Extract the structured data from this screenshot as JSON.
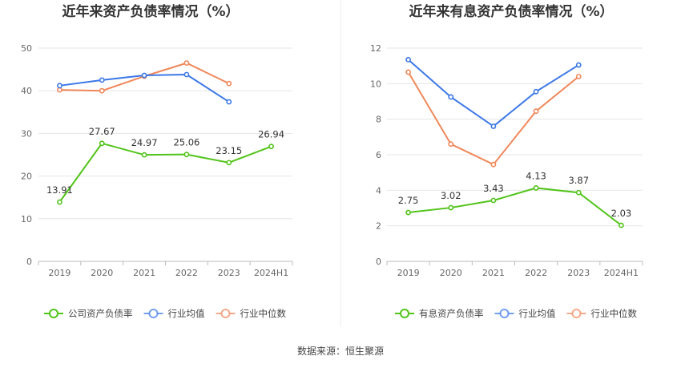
{
  "chart_data": [
    {
      "type": "line",
      "title": "近年来资产负债率情况（%）",
      "categories": [
        "2019",
        "2020",
        "2021",
        "2022",
        "2023",
        "2024H1"
      ],
      "ylim": [
        0,
        50
      ],
      "yticks": [
        0,
        10,
        20,
        30,
        40,
        50
      ],
      "grid": true,
      "legend_position": "bottom",
      "series": [
        {
          "name": "公司资产负债率",
          "color": "#52c41a",
          "values": [
            13.91,
            27.67,
            24.97,
            25.06,
            23.15,
            26.94
          ],
          "labels": [
            "13.91",
            "27.67",
            "24.97",
            "25.06",
            "23.15",
            "26.94"
          ]
        },
        {
          "name": "行业均值",
          "color": "#3b78e7",
          "values": [
            41.2,
            42.5,
            43.6,
            43.8,
            37.4,
            null
          ]
        },
        {
          "name": "行业中位数",
          "color": "#f0875a",
          "values": [
            40.2,
            40.0,
            43.4,
            46.5,
            41.7,
            null
          ]
        }
      ]
    },
    {
      "type": "line",
      "title": "近年来有息资产负债率情况（%）",
      "categories": [
        "2019",
        "2020",
        "2021",
        "2022",
        "2023",
        "2024H1"
      ],
      "ylim": [
        0,
        12
      ],
      "yticks": [
        0,
        2,
        4,
        6,
        8,
        10,
        12
      ],
      "grid": true,
      "legend_position": "bottom",
      "series": [
        {
          "name": "有息资产负债率",
          "color": "#52c41a",
          "values": [
            2.75,
            3.02,
            3.43,
            4.13,
            3.87,
            2.03
          ],
          "labels": [
            "2.75",
            "3.02",
            "3.43",
            "4.13",
            "3.87",
            "2.03"
          ]
        },
        {
          "name": "行业均值",
          "color": "#3b78e7",
          "values": [
            11.35,
            9.25,
            7.6,
            9.55,
            11.05,
            null
          ]
        },
        {
          "name": "行业中位数",
          "color": "#f0875a",
          "values": [
            10.65,
            6.6,
            5.45,
            8.45,
            10.4,
            null
          ]
        }
      ]
    }
  ],
  "footer": {
    "source": "数据来源：恒生聚源"
  }
}
